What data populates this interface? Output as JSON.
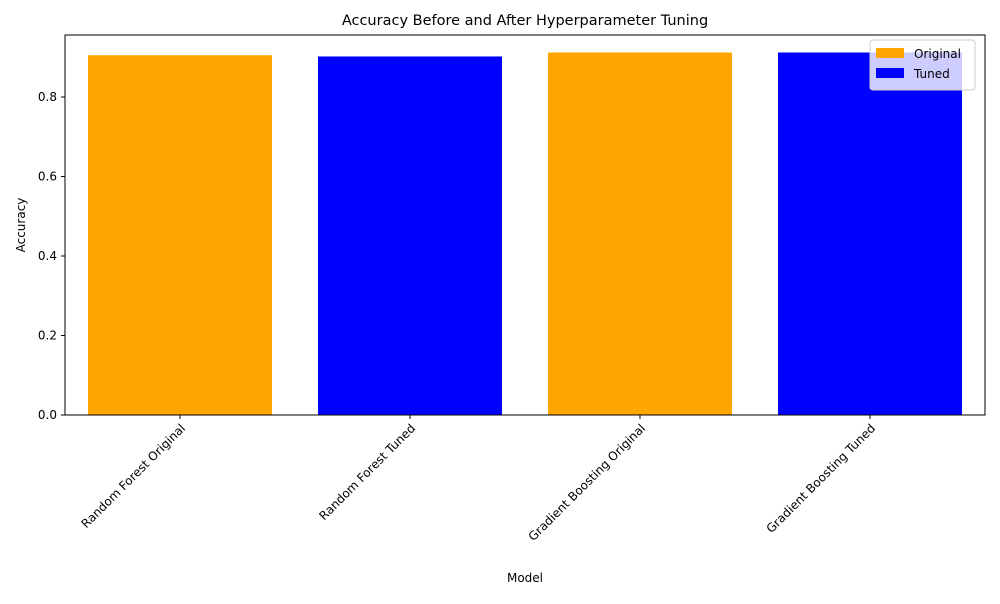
{
  "chart_data": {
    "type": "bar",
    "title": "Accuracy Before and After Hyperparameter Tuning",
    "xlabel": "Model",
    "ylabel": "Accuracy",
    "categories": [
      "Random Forest Original",
      "Random Forest Tuned",
      "Gradient Boosting Original",
      "Gradient Boosting Tuned"
    ],
    "values": [
      0.905,
      0.902,
      0.912,
      0.912
    ],
    "bar_series": [
      "Original",
      "Tuned",
      "Original",
      "Tuned"
    ],
    "series": [
      {
        "name": "Original",
        "color": "#FFA500"
      },
      {
        "name": "Tuned",
        "color": "#0000FF"
      }
    ],
    "ylim": [
      0,
      0.956
    ],
    "yticks": [
      0.0,
      0.2,
      0.4,
      0.6,
      0.8
    ],
    "ytick_labels": [
      "0.0",
      "0.2",
      "0.4",
      "0.6",
      "0.8"
    ],
    "xtick_rotation": 45,
    "grid": false,
    "legend": {
      "position": "top-right",
      "entries": [
        "Original",
        "Tuned"
      ]
    }
  }
}
